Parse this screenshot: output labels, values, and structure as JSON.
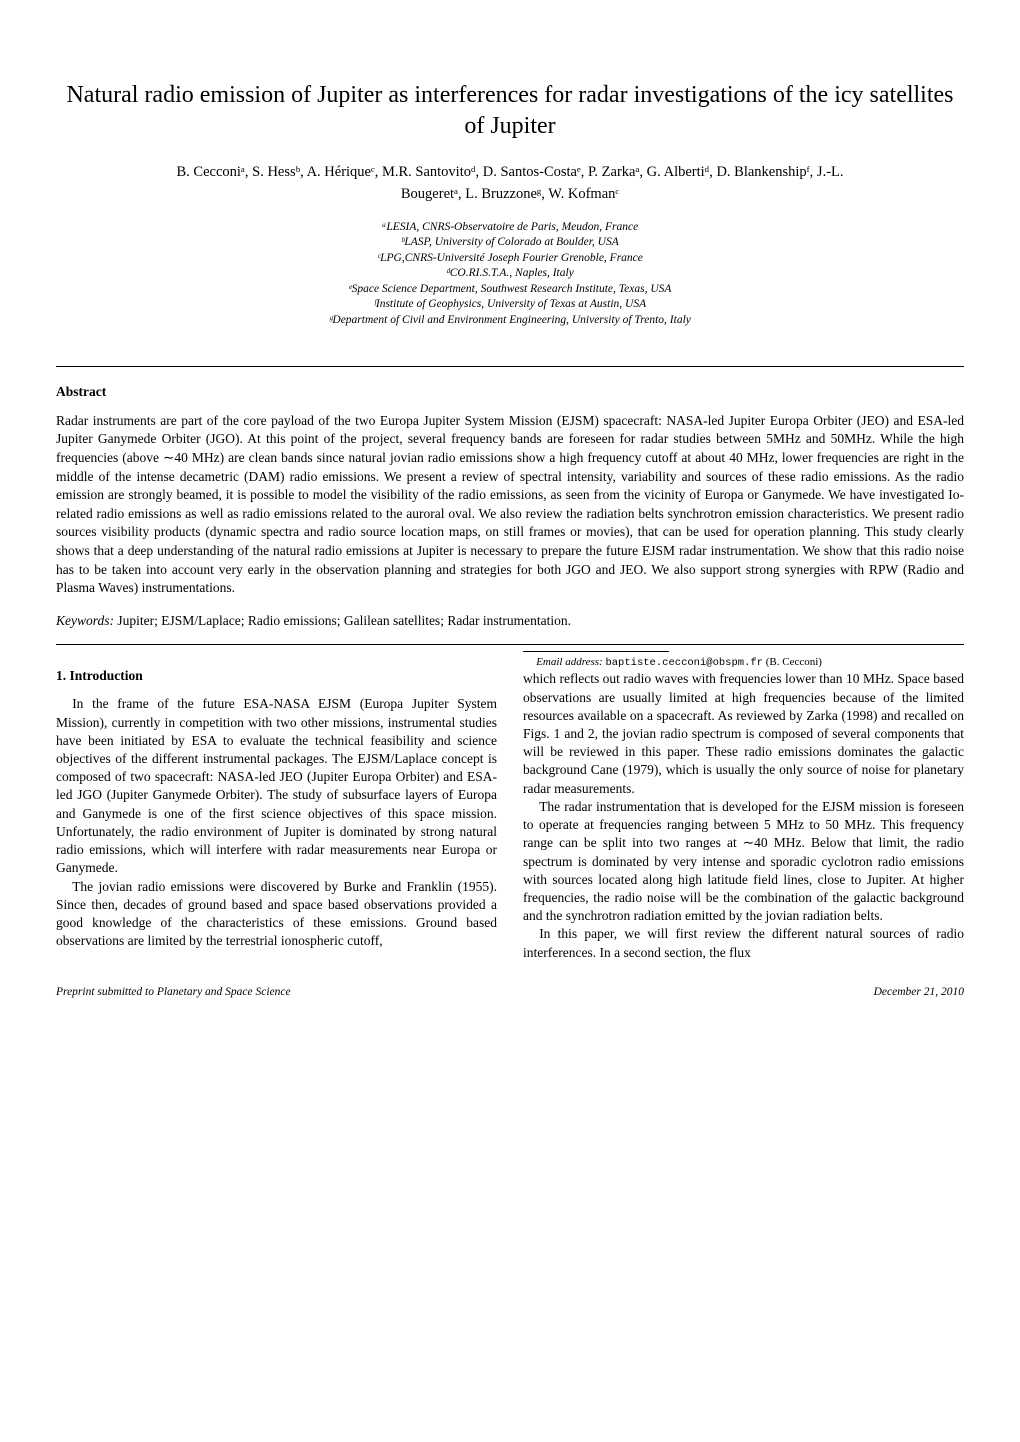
{
  "title": "Natural radio emission of Jupiter as interferences for radar investigations of the icy satellites of Jupiter",
  "authors_line1": "B. Cecconiᵃ, S. Hessᵇ, A. Hériqueᶜ, M.R. Santovitoᵈ, D. Santos-Costaᵉ, P. Zarkaᵃ, G. Albertiᵈ, D. Blankenshipᶠ, J.-L.",
  "authors_line2": "Bougeretᵃ, L. Bruzzoneᵍ, W. Kofmanᶜ",
  "affiliations": {
    "a": "ᵃLESIA, CNRS-Observatoire de Paris, Meudon, France",
    "b": "ᵇLASP, University of Colorado at Boulder, USA",
    "c": "ᶜLPG,CNRS-Université Joseph Fourier Grenoble, France",
    "d": "ᵈCO.RI.S.T.A., Naples, Italy",
    "e": "ᵉSpace Science Department, Southwest Research Institute, Texas, USA",
    "f": "ᶠInstitute of Geophysics, University of Texas at Austin, USA",
    "g": "ᵍDepartment of Civil and Environment Engineering, University of Trento, Italy"
  },
  "abstract_heading": "Abstract",
  "abstract_body": "Radar instruments are part of the core payload of the two Europa Jupiter System Mission (EJSM) spacecraft: NASA-led Jupiter Europa Orbiter (JEO) and ESA-led Jupiter Ganymede Orbiter (JGO). At this point of the project, several frequency bands are foreseen for radar studies between 5MHz and 50MHz. While the high frequencies (above ∼40 MHz) are clean bands since natural jovian radio emissions show a high frequency cutoff at about 40 MHz, lower frequencies are right in the middle of the intense decametric (DAM) radio emissions. We present a review of spectral intensity, variability and sources of these radio emissions. As the radio emission are strongly beamed, it is possible to model the visibility of the radio emissions, as seen from the vicinity of Europa or Ganymede. We have investigated Io-related radio emissions as well as radio emissions related to the auroral oval. We also review the radiation belts synchrotron emission characteristics. We present radio sources visibility products (dynamic spectra and radio source location maps, on still frames or movies), that can be used for operation planning. This study clearly shows that a deep understanding of the natural radio emissions at Jupiter is necessary to prepare the future EJSM radar instrumentation. We show that this radio noise has to be taken into account very early in the observation planning and strategies for both JGO and JEO. We also support strong synergies with RPW (Radio and Plasma Waves) instrumentations.",
  "keywords_label": "Keywords:",
  "keywords_text": "   Jupiter; EJSM/Laplace; Radio emissions; Galilean satellites; Radar instrumentation.",
  "section1_heading": "1. Introduction",
  "body": {
    "p1": "In the frame of the future ESA-NASA EJSM (Europa Jupiter System Mission), currently in competition with two other missions, instrumental studies have been initiated by ESA to evaluate the technical feasibility and science objectives of the different instrumental packages. The EJSM/Laplace concept is composed of two spacecraft: NASA-led JEO (Jupiter Europa Orbiter) and ESA-led JGO (Jupiter Ganymede Orbiter). The study of subsurface layers of Europa and Ganymede is one of the first science objectives of this space mission. Unfortunately, the radio environment of Jupiter is dominated by strong natural radio emissions, which will interfere with radar measurements near Europa or Ganymede.",
    "p2": "The jovian radio emissions were discovered by Burke and Franklin (1955). Since then, decades of ground based and space based observations provided a good knowledge of the characteristics of these emissions. Ground based observations are limited by the terrestrial ionospheric cutoff,",
    "p3": "which reflects out radio waves with frequencies lower than 10 MHz. Space based observations are usually limited at high frequencies because of the limited resources available on a spacecraft. As reviewed by Zarka (1998) and recalled on Figs. 1 and 2, the jovian radio spectrum is composed of several components that will be reviewed in this paper. These radio emissions dominates the galactic background Cane (1979), which is usually the only source of noise for planetary radar measurements.",
    "p4": "The radar instrumentation that is developed for the EJSM mission is foreseen to operate at frequencies ranging between 5 MHz to 50 MHz. This frequency range can be split into two ranges at ∼40 MHz. Below that limit, the radio spectrum is dominated by very intense and sporadic cyclotron radio emissions with sources located along high latitude field lines, close to Jupiter. At higher frequencies, the radio noise will be the combination of the galactic background and the synchrotron radiation emitted by the jovian radiation belts.",
    "p5": "In this paper, we will first review the different natural sources of radio interferences. In a second section, the flux"
  },
  "footnote": {
    "label": "Email address:",
    "email": "baptiste.cecconi@obspm.fr",
    "attribution": "(B. Cecconi)"
  },
  "preprint": {
    "left": "Preprint submitted to Planetary and Space Science",
    "right": "December 21, 2010"
  }
}
